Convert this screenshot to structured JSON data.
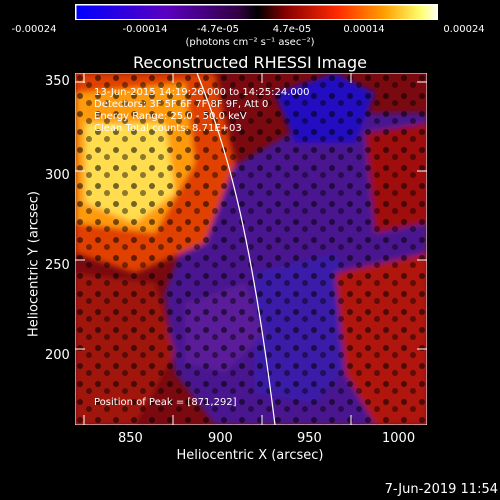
{
  "colorbar": {
    "ticks": [
      "-0.00024",
      "-0.00014",
      "-4.7e-05",
      "4.7e-05",
      "0.00014",
      "0.00024"
    ],
    "unit_label": "(photons cm⁻² s⁻¹ asec⁻²)",
    "gradient": [
      "#0000ff",
      "#3a00c8",
      "#8a00a0",
      "#000000",
      "#9a0000",
      "#ff2a00",
      "#ff9a00",
      "#ffff60",
      "#ffffff"
    ]
  },
  "plot": {
    "title": "Reconstructed RHESSI Image",
    "xlabel": "Heliocentric X (arcsec)",
    "ylabel": "Heliocentric Y (arcsec)",
    "x_ticks": [
      "850",
      "900",
      "950",
      "1000"
    ],
    "y_ticks": [
      "200",
      "250",
      "300",
      "350"
    ],
    "info": [
      "13-Jun-2015 14:19:26.000 to 14:25:24.000",
      "Detectors: 3F 5F 6F 7F 8F 9F, Att 0",
      "Energy Range: 25.0 - 50.0 keV",
      "Clean    Total counts: 8.71E+03"
    ],
    "peak_text": "Position of Peak = [871,292]"
  },
  "timestamp": "7-Jun-2019 11:54"
}
